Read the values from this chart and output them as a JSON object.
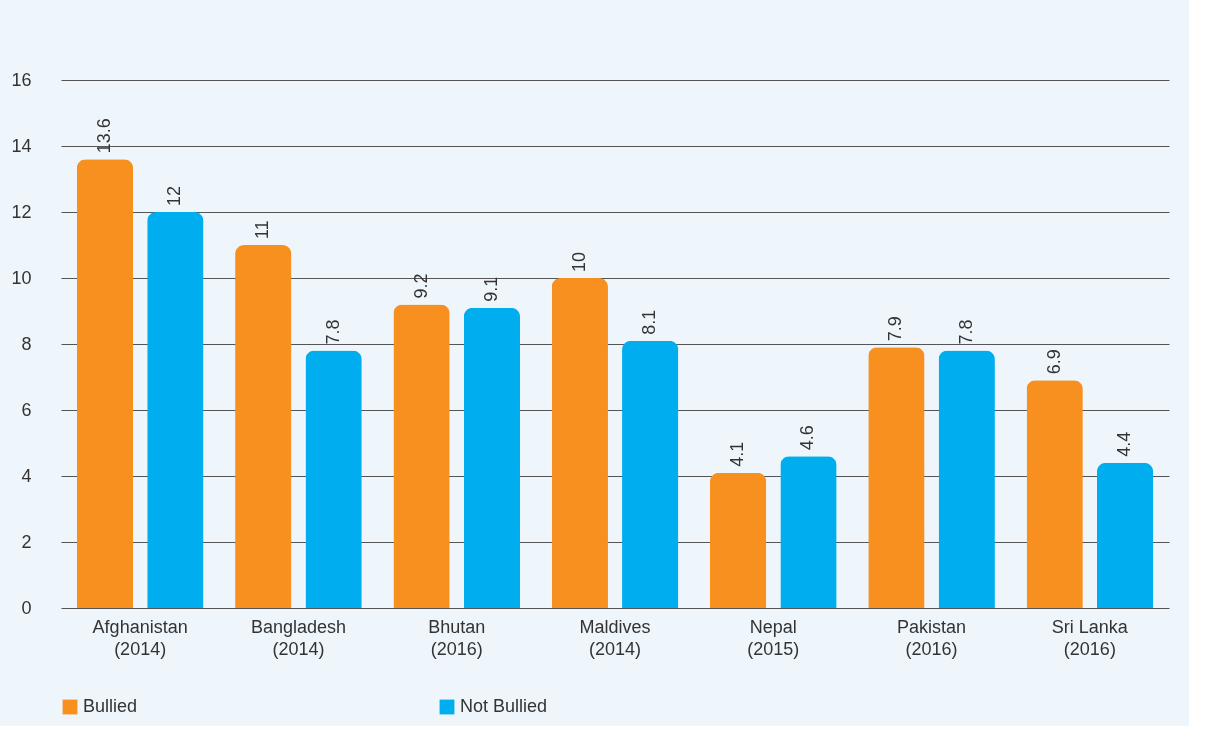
{
  "chart_data": {
    "type": "bar",
    "categories": [
      "Afghanistan\n(2014)",
      "Bangladesh\n(2014)",
      "Bhutan\n(2016)",
      "Maldives\n(2014)",
      "Nepal\n(2015)",
      "Pakistan\n(2016)",
      "Sri Lanka\n(2016)"
    ],
    "series": [
      {
        "name": "Bullied",
        "color": "#f7901e",
        "values": [
          13.6,
          11,
          9.2,
          10,
          4.1,
          7.9,
          6.9
        ]
      },
      {
        "name": "Not Bullied",
        "color": "#00aeef",
        "values": [
          12,
          7.8,
          9.1,
          8.1,
          4.6,
          7.8,
          4.4
        ]
      }
    ],
    "ylim": [
      0,
      16
    ],
    "yticks": [
      0,
      2,
      4,
      6,
      8,
      10,
      12,
      14,
      16
    ],
    "grid": "y",
    "legend": "bottom",
    "data_labels": true
  }
}
